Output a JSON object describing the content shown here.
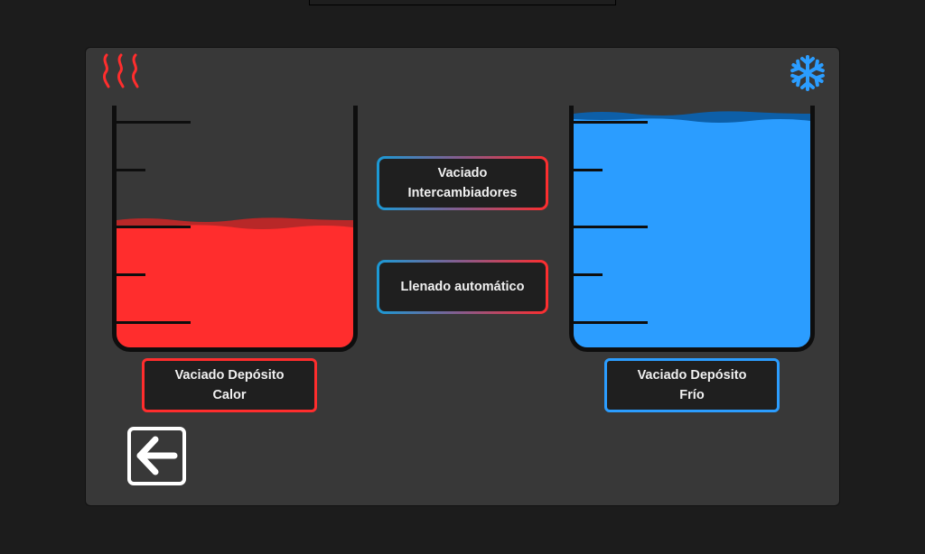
{
  "icons": {
    "heat": "heat-waves-icon",
    "cold": "snowflake-icon",
    "back": "arrow-left-icon"
  },
  "colors": {
    "hot": "#ff2d2d",
    "cold": "#2b9dff",
    "background": "#383838"
  },
  "tanks": {
    "hot": {
      "level_percent": 51
    },
    "cold": {
      "level_percent": 95
    }
  },
  "buttons": {
    "drain_exchangers": "Vaciado\nIntercambiadores",
    "auto_fill": "Llenado automático",
    "drain_hot": "Vaciado Depósito\nCalor",
    "drain_cold": "Vaciado Depósito\nFrío"
  }
}
